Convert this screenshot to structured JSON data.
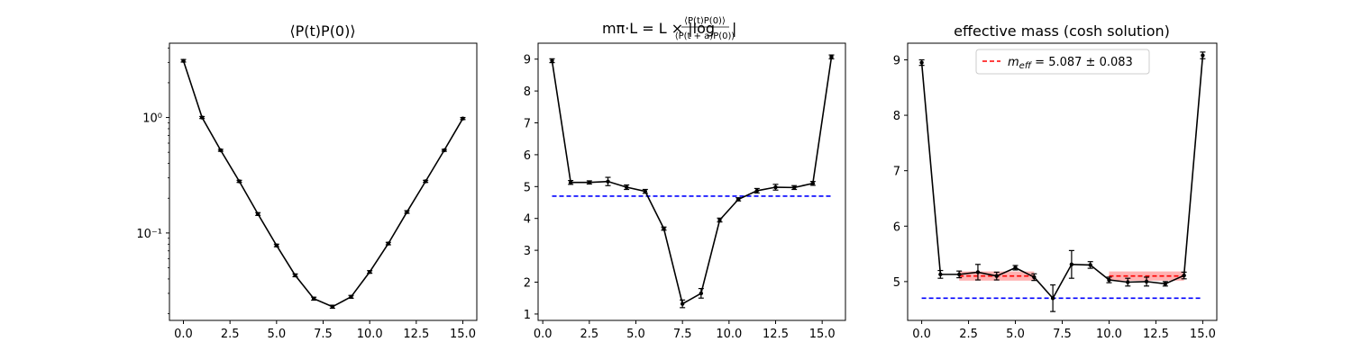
{
  "chart_data": [
    {
      "type": "line",
      "title": "⟨P(t)P(0)⟩",
      "xlabel": "",
      "ylabel": "",
      "yscale": "log",
      "xlim": [
        -0.75,
        15.75
      ],
      "ylim": [
        0.0175,
        4.4
      ],
      "xticks": [
        0,
        2.5,
        5,
        7.5,
        10,
        12.5,
        15
      ],
      "xtick_labels": [
        "0.0",
        "2.5",
        "5.0",
        "7.5",
        "10.0",
        "12.5",
        "15.0"
      ],
      "yticks": [
        1,
        0.1
      ],
      "ytick_labels": [
        "10⁰",
        "10⁻¹"
      ],
      "series": [
        {
          "color": "#000000",
          "x": [
            0,
            1,
            2,
            3,
            4,
            5,
            6,
            7,
            8,
            9,
            10,
            11,
            12,
            13,
            14,
            15
          ],
          "y": [
            3.1,
            1.0,
            0.52,
            0.28,
            0.146,
            0.078,
            0.043,
            0.027,
            0.023,
            0.028,
            0.046,
            0.081,
            0.152,
            0.28,
            0.52,
            0.98
          ],
          "err": [
            0.08,
            0.02,
            0.01,
            0.006,
            0.004,
            0.002,
            0.0012,
            0.0008,
            0.0007,
            0.0008,
            0.0012,
            0.002,
            0.004,
            0.006,
            0.01,
            0.02
          ]
        }
      ]
    },
    {
      "type": "line",
      "title_main": "mπ·L = L × |log",
      "title_num": "⟨P(t)P(0)⟩",
      "title_den": "⟨P(t + a)P(0)⟩",
      "title_end": "|",
      "xlabel": "",
      "ylabel": "",
      "xlim": [
        -0.25,
        16.25
      ],
      "ylim": [
        0.8,
        9.5
      ],
      "xticks": [
        0,
        2.5,
        5,
        7.5,
        10,
        12.5,
        15
      ],
      "xtick_labels": [
        "0.0",
        "2.5",
        "5.0",
        "7.5",
        "10.0",
        "12.5",
        "15.0"
      ],
      "yticks": [
        1,
        2,
        3,
        4,
        5,
        6,
        7,
        8,
        9
      ],
      "ytick_labels": [
        "1",
        "2",
        "3",
        "4",
        "5",
        "6",
        "7",
        "8",
        "9"
      ],
      "hline": {
        "y": 4.7,
        "x_range": [
          0.5,
          15.5
        ],
        "color": "#0000ff"
      },
      "series": [
        {
          "color": "#000000",
          "x": [
            0.5,
            1.5,
            2.5,
            3.5,
            4.5,
            5.5,
            6.5,
            7.5,
            8.5,
            9.5,
            10.5,
            11.5,
            12.5,
            13.5,
            14.5,
            15.5
          ],
          "y": [
            8.95,
            5.13,
            5.13,
            5.16,
            4.98,
            4.85,
            3.68,
            1.32,
            1.65,
            3.95,
            4.6,
            4.87,
            4.98,
            4.97,
            5.1,
            9.07
          ],
          "err": [
            0.06,
            0.06,
            0.05,
            0.13,
            0.07,
            0.06,
            0.05,
            0.12,
            0.15,
            0.06,
            0.05,
            0.07,
            0.09,
            0.06,
            0.06,
            0.06
          ]
        }
      ]
    },
    {
      "type": "line",
      "title": "effective mass (cosh solution)",
      "xlabel": "",
      "ylabel": "",
      "xlim": [
        -0.75,
        15.75
      ],
      "ylim": [
        4.3,
        9.3
      ],
      "xticks": [
        0,
        2.5,
        5,
        7.5,
        10,
        12.5,
        15
      ],
      "xtick_labels": [
        "0.0",
        "2.5",
        "5.0",
        "7.5",
        "10.0",
        "12.5",
        "15.0"
      ],
      "yticks": [
        5,
        6,
        7,
        8,
        9
      ],
      "ytick_labels": [
        "5",
        "6",
        "7",
        "8",
        "9"
      ],
      "legend": {
        "placement": "top-center",
        "label": "m_eff = 5.087 ± 0.083",
        "label_main": "m",
        "label_sub": "eff",
        "label_rest": " = 5.087 ± 0.083",
        "color": "#ff0000"
      },
      "hline": {
        "y": 4.7,
        "x_range": [
          0,
          15
        ],
        "color": "#0000ff"
      },
      "fit_bands": [
        {
          "x_range": [
            2,
            6
          ],
          "center": 5.1,
          "half_width": 0.083,
          "color": "#ff0000",
          "alpha": 0.3
        },
        {
          "x_range": [
            10,
            14
          ],
          "center": 5.1,
          "half_width": 0.083,
          "color": "#ff0000",
          "alpha": 0.3
        }
      ],
      "series": [
        {
          "color": "#000000",
          "x": [
            0,
            1,
            2,
            3,
            4,
            5,
            6,
            7,
            8,
            9,
            10,
            11,
            12,
            13,
            14,
            15
          ],
          "y": [
            8.95,
            5.13,
            5.13,
            5.17,
            5.1,
            5.25,
            5.08,
            4.7,
            5.31,
            5.3,
            5.03,
            4.99,
            5.0,
            4.96,
            5.11,
            9.08
          ],
          "err": [
            0.05,
            0.07,
            0.06,
            0.14,
            0.07,
            0.04,
            0.06,
            0.24,
            0.25,
            0.06,
            0.05,
            0.07,
            0.08,
            0.04,
            0.06,
            0.06
          ]
        }
      ]
    }
  ]
}
